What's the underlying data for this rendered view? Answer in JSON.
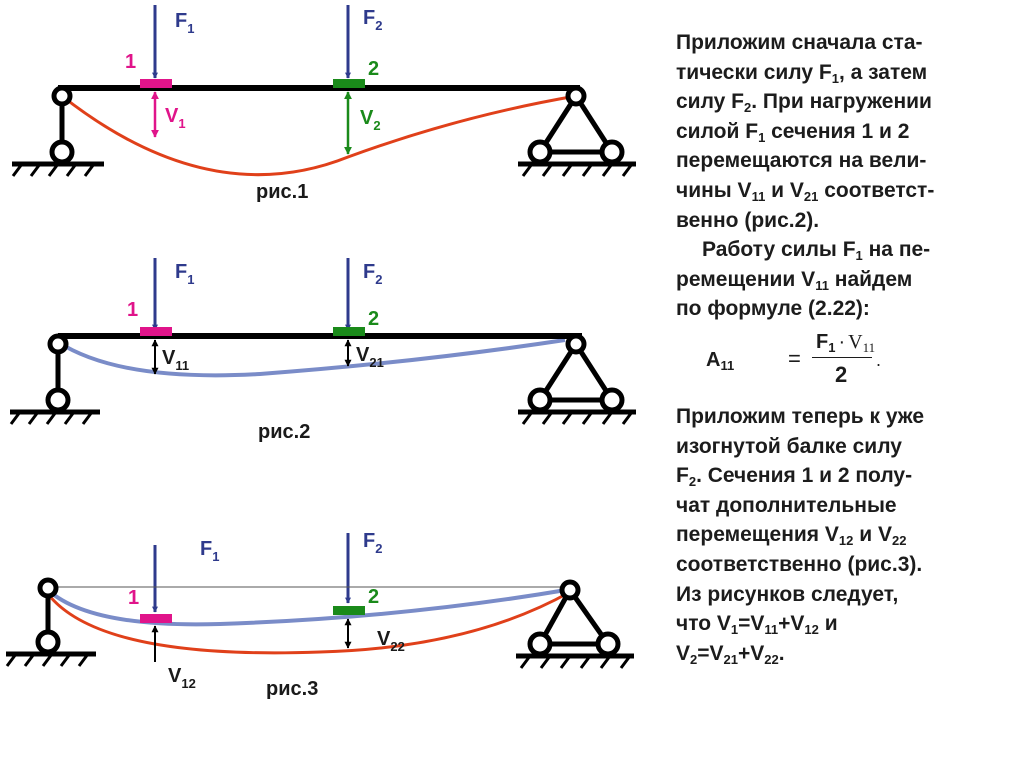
{
  "figures": {
    "fig1": {
      "caption": "рис.1",
      "force1_label": "F",
      "force1_sub": "1",
      "force2_label": "F",
      "force2_sub": "2",
      "section1_label": "1",
      "section2_label": "2",
      "disp1_label": "V",
      "disp1_sub": "1",
      "disp2_label": "V",
      "disp2_sub": "2"
    },
    "fig2": {
      "caption": "рис.2",
      "force1_label": "F",
      "force1_sub": "1",
      "force2_label": "F",
      "force2_sub": "2",
      "section1_label": "1",
      "section2_label": "2",
      "disp1_label": "V",
      "disp1_sub": "11",
      "disp2_label": "V",
      "disp2_sub": "21"
    },
    "fig3": {
      "caption": "рис.3",
      "force1_label": "F",
      "force1_sub": "1",
      "force2_label": "F",
      "force2_sub": "2",
      "section1_label": "1",
      "section2_label": "2",
      "disp1_label": "V",
      "disp1_sub": "12",
      "disp2_label": "V",
      "disp2_sub": "22"
    }
  },
  "text": {
    "p1": {
      "l1": "Приложим сначала ста-",
      "l2a": "тически силу F",
      "l2s": "1",
      "l2b": ", а затем",
      "l3": "силу F",
      "l3s": "2",
      "l3b": ". При нагружении",
      "l4": "силой F",
      "l4s": "1",
      "l4b": " сечения 1 и 2",
      "l5": "перемещаются на вели-",
      "l6a": "чины V",
      "l6s1": "11",
      "l6b": " и V",
      "l6s2": "21",
      "l6c": " соответст-",
      "l7": "венно (рис.2)."
    },
    "p2": {
      "l1a": "Работу силы F",
      "l1s": "1",
      "l1b": " на пе-",
      "l2a": "ремещении V",
      "l2s": "11",
      "l2b": " найдем",
      "l3": "по формуле (2.22):"
    },
    "formula": {
      "lhs": "A",
      "lhs_sub": "11",
      "eq": "=",
      "num_f": "F",
      "num_f_sub": "1",
      "num_dot": "·",
      "num_v": "V",
      "num_v_sub": "11",
      "den": "2",
      "period": "."
    },
    "p3": {
      "l1": "Приложим теперь к уже",
      "l2": "изогнутой балке силу",
      "l3a": " F",
      "l3s": "2",
      "l3b": ". Сечения 1 и 2 полу-",
      "l4": "чат дополнительные",
      "l5a": "перемещения V",
      "l5s1": "12",
      "l5b": " и V",
      "l5s2": "22",
      "l6": "соответственно (рис.3).",
      "l7": "Из рисунков следует,",
      "l8a": "что V",
      "l8s1": "1",
      "l8b": "=V",
      "l8s2": "11",
      "l8c": "+V",
      "l8s3": "12",
      "l8d": " и",
      "l9a": " V",
      "l9s1": "2",
      "l9b": "=V",
      "l9s2": "21",
      "l9c": "+V",
      "l9s3": "22",
      "l9d": "."
    }
  },
  "colors": {
    "force_arrow": "#2e3a8c",
    "marker_1": "#e0148a",
    "marker_2": "#1a8a1a",
    "deflection_red": "#e0401a",
    "deflection_blue": "#7a8cc8",
    "beam": "#000000",
    "text": "#1c1c1c"
  }
}
